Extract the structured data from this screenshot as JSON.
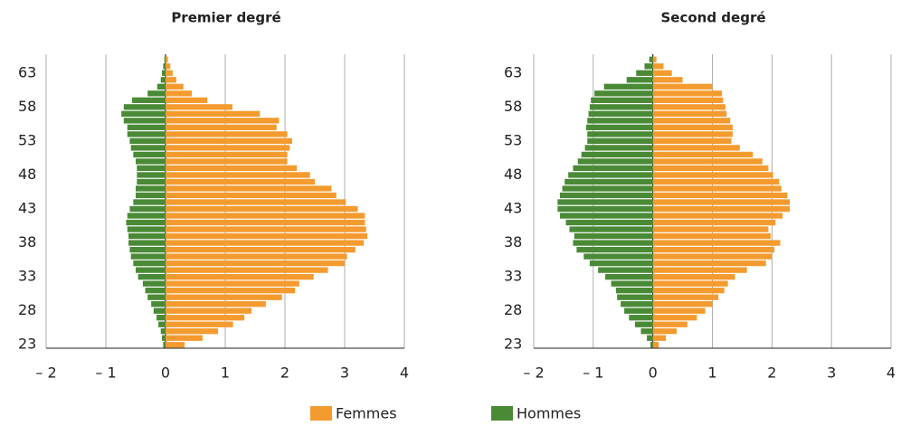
{
  "chart_data": [
    {
      "type": "bar",
      "orientation": "horizontal",
      "title": "Premier degré",
      "categories": [
        23,
        null,
        null,
        null,
        null,
        28,
        null,
        null,
        null,
        null,
        33,
        null,
        null,
        null,
        null,
        38,
        null,
        null,
        null,
        null,
        43,
        null,
        null,
        null,
        null,
        48,
        null,
        null,
        null,
        null,
        53,
        null,
        null,
        null,
        null,
        58,
        null,
        null,
        null,
        null,
        63,
        null,
        null
      ],
      "series": [
        {
          "name": "Femmes",
          "color": "#f49b2f",
          "values": [
            0.32,
            0.62,
            0.88,
            1.13,
            1.32,
            1.44,
            1.68,
            1.95,
            2.17,
            2.24,
            2.48,
            2.72,
            3.0,
            3.04,
            3.18,
            3.32,
            3.38,
            3.36,
            3.34,
            3.34,
            3.22,
            3.02,
            2.86,
            2.78,
            2.5,
            2.42,
            2.2,
            2.04,
            2.04,
            2.08,
            2.12,
            2.04,
            1.86,
            1.9,
            1.58,
            1.12,
            0.7,
            0.44,
            0.3,
            0.18,
            0.12,
            0.08,
            0.04
          ]
        },
        {
          "name": "Hommes",
          "color": "#4a8a37",
          "values": [
            -0.04,
            -0.06,
            -0.08,
            -0.12,
            -0.15,
            -0.2,
            -0.24,
            -0.3,
            -0.34,
            -0.38,
            -0.46,
            -0.5,
            -0.54,
            -0.58,
            -0.6,
            -0.62,
            -0.62,
            -0.64,
            -0.66,
            -0.64,
            -0.6,
            -0.54,
            -0.5,
            -0.5,
            -0.48,
            -0.48,
            -0.48,
            -0.5,
            -0.54,
            -0.58,
            -0.6,
            -0.64,
            -0.64,
            -0.7,
            -0.74,
            -0.7,
            -0.56,
            -0.3,
            -0.14,
            -0.08,
            -0.06,
            -0.04,
            -0.02
          ]
        }
      ],
      "xlim": [
        -2,
        4
      ],
      "xticks": [
        {
          "value": -2,
          "label": "– 2"
        },
        {
          "value": -1,
          "label": "– 1"
        },
        0,
        1,
        2,
        3,
        4
      ],
      "grid": true
    },
    {
      "type": "bar",
      "orientation": "horizontal",
      "title": "Second degré",
      "categories": [
        23,
        null,
        null,
        null,
        null,
        28,
        null,
        null,
        null,
        null,
        33,
        null,
        null,
        null,
        null,
        38,
        null,
        null,
        null,
        null,
        43,
        null,
        null,
        null,
        null,
        48,
        null,
        null,
        null,
        null,
        53,
        null,
        null,
        null,
        null,
        58,
        null,
        null,
        null,
        null,
        63,
        null,
        null
      ],
      "series": [
        {
          "color": "#f49b2f",
          "values": [
            0.1,
            0.22,
            0.4,
            0.58,
            0.74,
            0.88,
            1.0,
            1.1,
            1.2,
            1.26,
            1.38,
            1.58,
            1.9,
            2.0,
            2.04,
            2.14,
            1.98,
            1.94,
            2.06,
            2.18,
            2.3,
            2.3,
            2.26,
            2.16,
            2.12,
            2.02,
            1.94,
            1.84,
            1.68,
            1.46,
            1.32,
            1.34,
            1.34,
            1.3,
            1.24,
            1.22,
            1.18,
            1.16,
            1.0,
            0.5,
            0.32,
            0.18,
            0.06
          ]
        },
        {
          "color": "#4a8a37",
          "values": [
            -0.04,
            -0.1,
            -0.2,
            -0.3,
            -0.4,
            -0.48,
            -0.54,
            -0.6,
            -0.62,
            -0.7,
            -0.8,
            -0.92,
            -1.06,
            -1.16,
            -1.28,
            -1.34,
            -1.32,
            -1.4,
            -1.46,
            -1.56,
            -1.6,
            -1.6,
            -1.56,
            -1.52,
            -1.48,
            -1.42,
            -1.34,
            -1.26,
            -1.2,
            -1.14,
            -1.1,
            -1.1,
            -1.12,
            -1.1,
            -1.08,
            -1.06,
            -1.04,
            -0.98,
            -0.82,
            -0.44,
            -0.28,
            -0.14,
            -0.06
          ]
        }
      ],
      "xlim": [
        -2,
        4
      ],
      "xticks": [
        {
          "value": -2,
          "label": "– 2"
        },
        {
          "value": -1,
          "label": "– 1"
        },
        0,
        1,
        2,
        3,
        4
      ],
      "grid": true
    }
  ]
}
